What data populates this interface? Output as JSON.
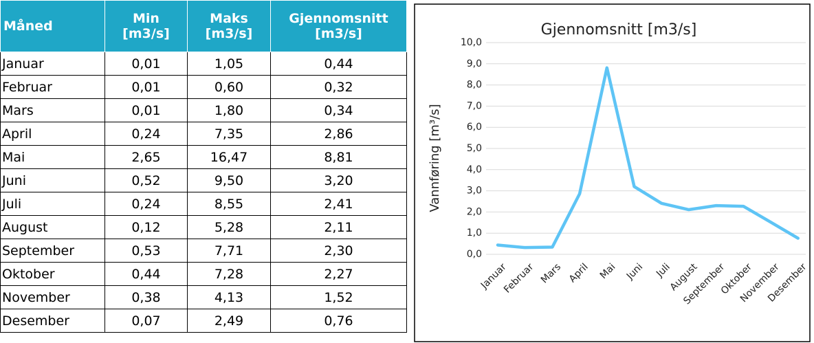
{
  "table": {
    "header": [
      [
        "Måned"
      ],
      [
        "Min",
        "[m3/s]"
      ],
      [
        "Maks",
        "[m3/s]"
      ],
      [
        "Gjennomsnitt",
        "[m3/s]"
      ]
    ],
    "rows": [
      [
        "Januar",
        "0,01",
        "1,05",
        "0,44"
      ],
      [
        "Februar",
        "0,01",
        "0,60",
        "0,32"
      ],
      [
        "Mars",
        "0,01",
        "1,80",
        "0,34"
      ],
      [
        "April",
        "0,24",
        "7,35",
        "2,86"
      ],
      [
        "Mai",
        "2,65",
        "16,47",
        "8,81"
      ],
      [
        "Juni",
        "0,52",
        "9,50",
        "3,20"
      ],
      [
        "Juli",
        "0,24",
        "8,55",
        "2,41"
      ],
      [
        "August",
        "0,12",
        "5,28",
        "2,11"
      ],
      [
        "September",
        "0,53",
        "7,71",
        "2,30"
      ],
      [
        "Oktober",
        "0,44",
        "7,28",
        "2,27"
      ],
      [
        "November",
        "0,38",
        "4,13",
        "1,52"
      ],
      [
        "Desember",
        "0,07",
        "2,49",
        "0,76"
      ]
    ]
  },
  "chart_data": {
    "type": "line",
    "title": "Gjennomsnitt [m3/s]",
    "y_label": "Vannføring [m³/s]",
    "categories": [
      "Januar",
      "Februar",
      "Mars",
      "April",
      "Mai",
      "Juni",
      "Juli",
      "August",
      "September",
      "Oktober",
      "November",
      "Desember"
    ],
    "values": [
      0.44,
      0.32,
      0.34,
      2.86,
      8.81,
      3.2,
      2.41,
      2.11,
      2.3,
      2.27,
      1.52,
      0.76
    ],
    "color": "#5ec4f5",
    "ylim": [
      0,
      10
    ],
    "yticks": [
      {
        "value": 0,
        "label": "0,0"
      },
      {
        "value": 1,
        "label": "1,0"
      },
      {
        "value": 2,
        "label": "2,0"
      },
      {
        "value": 3,
        "label": "3,0"
      },
      {
        "value": 4,
        "label": "4,0"
      },
      {
        "value": 5,
        "label": "5,0"
      },
      {
        "value": 6,
        "label": "6,0"
      },
      {
        "value": 7,
        "label": "7,0"
      },
      {
        "value": 8,
        "label": "8,0"
      },
      {
        "value": 9,
        "label": "9,0"
      },
      {
        "value": 10,
        "label": "10,0"
      }
    ],
    "grid": true
  }
}
